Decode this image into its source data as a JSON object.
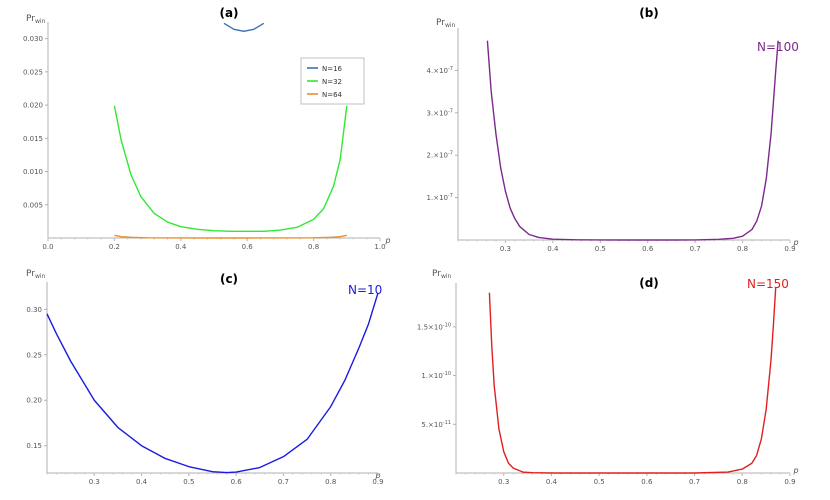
{
  "chart_data": [
    {
      "id": "a",
      "type": "line",
      "title": "(a)",
      "xlabel": "p",
      "ylabel": "Pr",
      "ylabel_sub": "win",
      "xlim": [
        0.0,
        1.0
      ],
      "ylim": [
        0.0,
        0.0325
      ],
      "xticks": [
        0.0,
        0.2,
        0.4,
        0.6,
        0.8,
        1.0
      ],
      "xtick_labels": [
        "0.0",
        "0.2",
        "0.4",
        "0.6",
        "0.8",
        "1.0"
      ],
      "yticks": [
        0.005,
        0.01,
        0.015,
        0.02,
        0.025,
        0.03
      ],
      "ytick_labels": [
        "0.005",
        "0.010",
        "0.015",
        "0.020",
        "0.025",
        "0.030"
      ],
      "legend": [
        "N=16",
        "N=32",
        "N=64"
      ],
      "series": [
        {
          "name": "N=16",
          "color": "#3a6fb5",
          "x": [
            0.53,
            0.56,
            0.59,
            0.62,
            0.65
          ],
          "y": [
            0.0323,
            0.0314,
            0.0311,
            0.0314,
            0.0323
          ]
        },
        {
          "name": "N=32",
          "color": "#33e833",
          "x": [
            0.2,
            0.22,
            0.25,
            0.28,
            0.32,
            0.36,
            0.4,
            0.45,
            0.5,
            0.55,
            0.6,
            0.65,
            0.7,
            0.75,
            0.8,
            0.83,
            0.86,
            0.88,
            0.9
          ],
          "y": [
            0.0199,
            0.0148,
            0.0095,
            0.0062,
            0.0037,
            0.0024,
            0.0017,
            0.0013,
            0.0011,
            0.001,
            0.001,
            0.001,
            0.0012,
            0.0016,
            0.0028,
            0.0044,
            0.0078,
            0.0118,
            0.0199
          ]
        },
        {
          "name": "N=64",
          "color": "#e8902e",
          "x": [
            0.2,
            0.22,
            0.25,
            0.3,
            0.4,
            0.5,
            0.6,
            0.7,
            0.8,
            0.85,
            0.88,
            0.9
          ],
          "y": [
            0.0004,
            0.0002,
            0.0001,
            3e-05,
            1e-05,
            0.0,
            0.0,
            1e-05,
            3e-05,
            0.0001,
            0.0002,
            0.0004
          ]
        }
      ]
    },
    {
      "id": "b",
      "type": "line",
      "title": "(b)",
      "xlabel": "p",
      "ylabel": "Pr",
      "ylabel_sub": "win",
      "label": "N=100",
      "label_color": "#7b2a8c",
      "xlim": [
        0.2,
        0.9
      ],
      "ylim": [
        0.0,
        5e-07
      ],
      "xticks": [
        0.3,
        0.4,
        0.5,
        0.6,
        0.7,
        0.8,
        0.9
      ],
      "xtick_labels": [
        "0.3",
        "0.4",
        "0.5",
        "0.6",
        "0.7",
        "0.8",
        "0.9"
      ],
      "yticks": [
        1e-07,
        2e-07,
        3e-07,
        4e-07
      ],
      "ytick_mant": [
        "1.",
        "2.",
        "3.",
        "4."
      ],
      "ytick_exp": "-7",
      "series": [
        {
          "name": "N=100",
          "color": "#7b2a8c",
          "x": [
            0.262,
            0.27,
            0.28,
            0.29,
            0.3,
            0.31,
            0.32,
            0.33,
            0.35,
            0.37,
            0.4,
            0.45,
            0.5,
            0.55,
            0.6,
            0.65,
            0.7,
            0.75,
            0.78,
            0.8,
            0.82,
            0.83,
            0.84,
            0.85,
            0.86,
            0.87,
            0.875
          ],
          "y": [
            4.7e-07,
            3.5e-07,
            2.5e-07,
            1.7e-07,
            1.15e-07,
            7.5e-08,
            5e-08,
            3.2e-08,
            1.3e-08,
            6e-09,
            2e-09,
            5e-10,
            1e-10,
            0.0,
            0.0,
            0.0,
            2e-10,
            1.5e-09,
            4e-09,
            9e-09,
            2.5e-08,
            4.5e-08,
            8e-08,
            1.45e-07,
            2.5e-07,
            4e-07,
            4.7e-07
          ]
        }
      ]
    },
    {
      "id": "c",
      "type": "line",
      "title": "(c)",
      "xlabel": "p",
      "ylabel": "Pr",
      "ylabel_sub": "win",
      "label": "N=10",
      "label_color": "#1a1ae0",
      "xlim": [
        0.2,
        0.9
      ],
      "ylim": [
        0.12,
        0.33
      ],
      "xticks": [
        0.3,
        0.4,
        0.5,
        0.6,
        0.7,
        0.8,
        0.9
      ],
      "xtick_labels": [
        "0.3",
        "0.4",
        "0.5",
        "0.6",
        "0.7",
        "0.8",
        "0.9"
      ],
      "yticks": [
        0.15,
        0.2,
        0.25,
        0.3
      ],
      "ytick_labels": [
        "0.15",
        "0.20",
        "0.25",
        "0.30"
      ],
      "series": [
        {
          "name": "N=10",
          "color": "#1a1ae0",
          "x": [
            0.2,
            0.22,
            0.25,
            0.3,
            0.35,
            0.4,
            0.45,
            0.5,
            0.55,
            0.58,
            0.6,
            0.65,
            0.7,
            0.75,
            0.8,
            0.83,
            0.86,
            0.88,
            0.9
          ],
          "y": [
            0.295,
            0.273,
            0.243,
            0.2,
            0.17,
            0.15,
            0.136,
            0.127,
            0.1215,
            0.1205,
            0.121,
            0.126,
            0.138,
            0.157,
            0.193,
            0.222,
            0.258,
            0.284,
            0.318
          ]
        }
      ]
    },
    {
      "id": "d",
      "type": "line",
      "title": "(d)",
      "xlabel": "p",
      "ylabel": "Pr",
      "ylabel_sub": "win",
      "label": "N=150",
      "label_color": "#e02020",
      "xlim": [
        0.2,
        0.9
      ],
      "ylim": [
        0.0,
        1.95e-10
      ],
      "xticks": [
        0.3,
        0.4,
        0.5,
        0.6,
        0.7,
        0.8,
        0.9
      ],
      "xtick_labels": [
        "0.3",
        "0.4",
        "0.5",
        "0.6",
        "0.7",
        "0.8",
        "0.9"
      ],
      "yticks": [
        5e-11,
        1e-10,
        1.5e-10
      ],
      "ytick_mant": [
        "5.",
        "1.",
        "1.5"
      ],
      "ytick_exp_list": [
        "-11",
        "-10",
        "-10"
      ],
      "series": [
        {
          "name": "N=150",
          "color": "#e02020",
          "x": [
            0.27,
            0.275,
            0.28,
            0.29,
            0.3,
            0.31,
            0.32,
            0.34,
            0.36,
            0.4,
            0.5,
            0.6,
            0.7,
            0.77,
            0.8,
            0.82,
            0.83,
            0.84,
            0.85,
            0.86,
            0.865,
            0.87
          ],
          "y": [
            1.85e-10,
            1.3e-10,
            9e-11,
            4.5e-11,
            2.2e-11,
            1e-11,
            5e-12,
            1e-12,
            3e-13,
            0.0,
            0.0,
            0.0,
            0.0,
            1e-12,
            4e-12,
            1e-11,
            1.8e-11,
            3.5e-11,
            6.5e-11,
            1.15e-10,
            1.5e-10,
            1.9e-10
          ]
        }
      ]
    }
  ]
}
